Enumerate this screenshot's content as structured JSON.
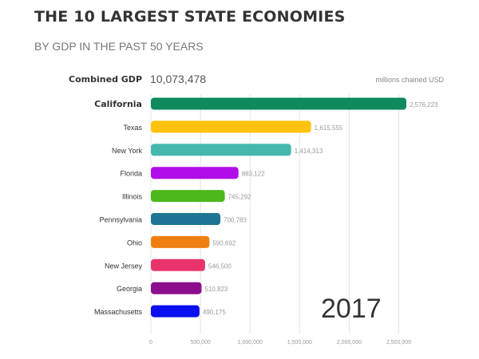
{
  "header": {
    "title": "THE 10 LARGEST STATE ECONOMIES",
    "subtitle": "BY GDP IN THE PAST 50 YEARS"
  },
  "summary": {
    "combined_label": "Combined GDP",
    "combined_value": "10,073,478",
    "units": "millions chained USD",
    "year": "2017"
  },
  "chart_data": {
    "type": "bar",
    "orientation": "horizontal",
    "categories": [
      "California",
      "Texas",
      "New York",
      "Florida",
      "Illinois",
      "Pennsylvania",
      "Ohio",
      "New Jersey",
      "Georgia",
      "Massachusetts"
    ],
    "values": [
      2576223,
      1615555,
      1414313,
      883122,
      745292,
      700783,
      590692,
      546500,
      510823,
      490175
    ],
    "value_labels": [
      "2,576,223",
      "1,615,555",
      "1,414,313",
      "883,122",
      "745,292",
      "700,783",
      "590,692",
      "546,500",
      "510,823",
      "490,175"
    ],
    "colors": [
      "#0e8a5c",
      "#ffc20e",
      "#45b8ad",
      "#b00ee8",
      "#4cb81c",
      "#1f7595",
      "#ef7f12",
      "#e8336b",
      "#8c0e8c",
      "#0a0ef0"
    ],
    "highlighted": "California",
    "xticks": [
      0,
      500000,
      1000000,
      1500000,
      2000000,
      2500000
    ],
    "xtick_labels": [
      "0",
      "500,000",
      "1,000,000",
      "1,500,000",
      "2,000,000",
      "2,500,000"
    ],
    "xlim": [
      0,
      2576223
    ],
    "grid": true,
    "title": "THE 10 LARGEST STATE ECONOMIES",
    "subtitle": "BY GDP IN THE PAST 50 YEARS",
    "xlabel": "millions chained USD",
    "ylabel": ""
  }
}
